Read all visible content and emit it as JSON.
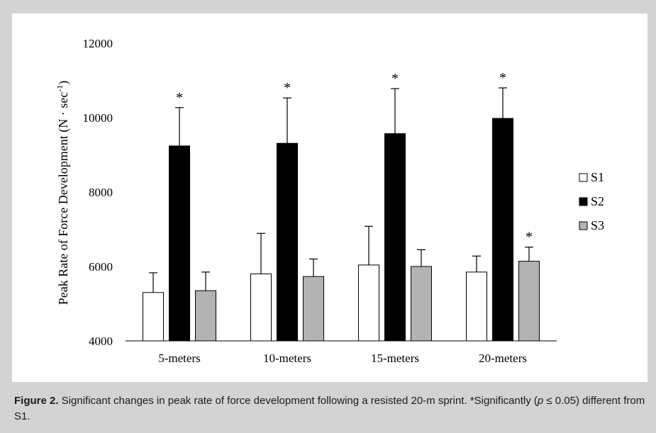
{
  "chart_data": {
    "type": "bar",
    "title": "",
    "xlabel": "",
    "ylabel_main": "Peak Rate of Force Development (N · sec",
    "ylabel_sup": "-1",
    "ylabel_close": ")",
    "ylim": [
      4000,
      12000
    ],
    "yticks": [
      4000,
      6000,
      8000,
      10000,
      12000
    ],
    "ytick_labels": [
      "4000",
      "6000",
      "8000",
      "10000",
      "12000"
    ],
    "categories": [
      "5-meters",
      "10-meters",
      "15-meters",
      "20-meters"
    ],
    "series": [
      {
        "name": "S1",
        "color": "#ffffff",
        "values": [
          5300,
          5800,
          6040,
          5850
        ],
        "errors": [
          530,
          1090,
          1040,
          430
        ],
        "significant": [
          false,
          false,
          false,
          false
        ]
      },
      {
        "name": "S2",
        "color": "#000000",
        "values": [
          9240,
          9310,
          9570,
          9980
        ],
        "errors": [
          1030,
          1220,
          1210,
          820
        ],
        "significant": [
          true,
          true,
          true,
          true
        ]
      },
      {
        "name": "S3",
        "color": "#b3b3b3",
        "values": [
          5350,
          5730,
          6000,
          6140
        ],
        "errors": [
          500,
          470,
          450,
          380
        ],
        "significant": [
          false,
          false,
          false,
          true
        ]
      }
    ],
    "significance_marker": "*",
    "legend_position": "right",
    "grid": false
  },
  "caption": {
    "label": "Figure 2.",
    "text_before_p": " Significant changes in peak rate of force development following a resisted 20-m sprint. *Significantly (",
    "p_symbol": "p",
    "text_after_p": " ≤ 0.05) different from S1."
  }
}
